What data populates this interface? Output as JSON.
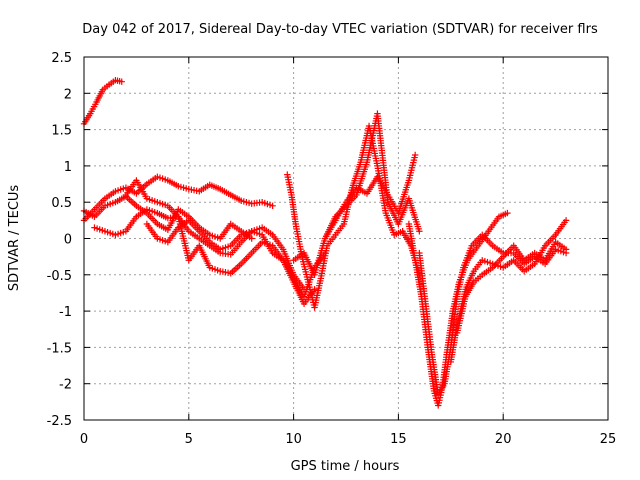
{
  "chart_data": {
    "type": "scatter",
    "title": "Day 042 of 2017, Sidereal Day-to-day VTEC variation (SDTVAR) for receiver flrs",
    "xlabel": "GPS time / hours",
    "ylabel": "SDTVAR / TECUs",
    "xlim": [
      0,
      25
    ],
    "ylim": [
      -2.5,
      2.5
    ],
    "x_ticks": [
      0,
      5,
      10,
      15,
      20,
      25
    ],
    "y_ticks": [
      -2.5,
      -2,
      -1.5,
      -1,
      -0.5,
      0,
      0.5,
      1,
      1.5,
      2,
      2.5
    ],
    "x_tick_labels": [
      "0",
      "5",
      "10",
      "15",
      "20",
      "25"
    ],
    "y_tick_labels": [
      "-2.5",
      "-2",
      "-1.5",
      "-1",
      "-0.5",
      "0",
      "0.5",
      "1",
      "1.5",
      "2",
      "2.5"
    ],
    "grid": true,
    "marker": "+",
    "color": "#ff0000",
    "series": [
      {
        "x": [
          0.0,
          0.3,
          0.6,
          0.9,
          1.2,
          1.5,
          1.8
        ],
        "y": [
          1.58,
          1.72,
          1.88,
          2.05,
          2.12,
          2.18,
          2.16
        ]
      },
      {
        "x": [
          0.0,
          0.5,
          1.0,
          1.5,
          2.0,
          2.5,
          3.0,
          3.5,
          4.0,
          4.5,
          5.0,
          5.5,
          6.0,
          6.5,
          7.0,
          7.5,
          8.0,
          8.5,
          9.0
        ],
        "y": [
          0.25,
          0.4,
          0.55,
          0.65,
          0.7,
          0.62,
          0.75,
          0.85,
          0.8,
          0.72,
          0.68,
          0.65,
          0.74,
          0.68,
          0.6,
          0.52,
          0.48,
          0.5,
          0.45
        ]
      },
      {
        "x": [
          0.0,
          0.5,
          1.0,
          1.5,
          2.0,
          2.5,
          3.0,
          3.5,
          4.0,
          4.5,
          5.0,
          5.5,
          6.0,
          6.5,
          7.0,
          7.5,
          8.0
        ],
        "y": [
          0.38,
          0.3,
          0.45,
          0.5,
          0.58,
          0.45,
          0.35,
          0.2,
          0.12,
          0.4,
          0.3,
          0.15,
          0.05,
          0.0,
          0.2,
          0.1,
          0.0
        ]
      },
      {
        "x": [
          0.5,
          1.0,
          1.5,
          2.0,
          2.5,
          3.0,
          3.5,
          4.0,
          4.5,
          5.0,
          5.5,
          6.0,
          6.5,
          7.0,
          7.5,
          8.0,
          8.5,
          9.0,
          9.5,
          10.0,
          10.5
        ],
        "y": [
          0.15,
          0.1,
          0.05,
          0.1,
          0.3,
          0.4,
          0.35,
          0.28,
          0.3,
          0.1,
          0.0,
          -0.1,
          -0.2,
          -0.22,
          -0.05,
          0.1,
          0.15,
          0.05,
          -0.15,
          -0.5,
          -0.7
        ]
      },
      {
        "x": [
          2.0,
          2.5,
          3.0,
          3.5,
          4.0,
          4.5,
          5.0,
          5.5,
          6.0,
          6.5,
          7.0,
          7.5,
          8.0,
          8.5,
          9.0,
          9.5,
          10.0,
          10.5,
          11.0
        ],
        "y": [
          0.6,
          0.8,
          0.55,
          0.5,
          0.45,
          0.3,
          -0.3,
          -0.1,
          -0.4,
          -0.45,
          -0.48,
          -0.35,
          -0.2,
          -0.05,
          -0.1,
          -0.3,
          -0.6,
          -0.9,
          -0.7
        ]
      },
      {
        "x": [
          3.0,
          3.5,
          4.0,
          4.5,
          5.0,
          5.5,
          6.0,
          6.5,
          7.0,
          7.5,
          8.0,
          8.5,
          9.0,
          9.5,
          10.0,
          10.5,
          11.0,
          11.5
        ],
        "y": [
          0.2,
          0.0,
          -0.05,
          0.15,
          0.25,
          0.1,
          -0.05,
          -0.15,
          -0.1,
          0.05,
          0.1,
          0.05,
          -0.2,
          -0.3,
          -0.55,
          -0.8,
          -0.4,
          -0.2
        ]
      },
      {
        "x": [
          9.7,
          9.9,
          10.1,
          10.4,
          10.7,
          11.0,
          11.3,
          11.6,
          12.0,
          12.4,
          12.8,
          13.2,
          13.6,
          14.0,
          14.4,
          14.8,
          15.2,
          15.6,
          16.0
        ],
        "y": [
          0.88,
          0.6,
          0.2,
          -0.25,
          -0.6,
          -0.95,
          -0.55,
          -0.1,
          0.05,
          0.2,
          0.7,
          1.05,
          1.55,
          1.0,
          0.35,
          0.05,
          0.1,
          -0.1,
          -0.5
        ]
      },
      {
        "x": [
          10.0,
          10.5,
          11.0,
          11.5,
          12.0,
          12.5,
          13.0,
          13.5,
          14.0,
          14.5,
          15.0,
          15.5,
          16.0
        ],
        "y": [
          -0.3,
          -0.2,
          -0.5,
          0.0,
          0.3,
          0.45,
          0.6,
          1.05,
          1.72,
          0.5,
          0.2,
          0.55,
          0.1
        ]
      },
      {
        "x": [
          11.5,
          12.0,
          12.5,
          13.0,
          13.5,
          14.0,
          14.5,
          15.0,
          15.5,
          15.8
        ],
        "y": [
          0.0,
          0.25,
          0.5,
          0.7,
          0.62,
          0.85,
          0.6,
          0.35,
          0.8,
          1.15
        ]
      },
      {
        "x": [
          15.5,
          15.8,
          16.1,
          16.4,
          16.7,
          16.9,
          17.1,
          17.3,
          17.6,
          17.9,
          18.3,
          18.8,
          19.3,
          19.8,
          20.2
        ],
        "y": [
          0.2,
          -0.3,
          -0.8,
          -1.5,
          -2.1,
          -2.3,
          -2.05,
          -1.6,
          -1.0,
          -0.6,
          -0.3,
          -0.1,
          0.1,
          0.3,
          0.35
        ]
      },
      {
        "x": [
          16.0,
          16.3,
          16.6,
          16.9,
          17.2,
          17.5,
          17.8,
          18.1,
          18.5,
          19.0,
          19.5,
          20.0,
          20.5,
          21.0,
          21.5,
          22.0,
          22.5,
          23.0
        ],
        "y": [
          -0.2,
          -0.9,
          -1.6,
          -2.15,
          -2.0,
          -1.5,
          -0.8,
          -0.4,
          -0.1,
          0.05,
          -0.1,
          -0.2,
          -0.2,
          -0.35,
          -0.25,
          -0.35,
          -0.15,
          -0.2
        ]
      },
      {
        "x": [
          17.5,
          17.8,
          18.2,
          18.6,
          19.0,
          19.5,
          20.0,
          20.5,
          21.0,
          21.5,
          22.0,
          22.5,
          23.0
        ],
        "y": [
          -1.7,
          -1.2,
          -0.7,
          -0.45,
          -0.3,
          -0.35,
          -0.4,
          -0.3,
          -0.45,
          -0.35,
          -0.1,
          0.05,
          0.25
        ]
      },
      {
        "x": [
          17.8,
          18.2,
          18.6,
          19.0,
          19.5,
          20.0,
          20.5,
          21.0,
          21.5,
          22.0,
          22.5,
          23.0
        ],
        "y": [
          -1.3,
          -0.8,
          -0.6,
          -0.5,
          -0.4,
          -0.25,
          -0.1,
          -0.3,
          -0.2,
          -0.3,
          -0.05,
          -0.15
        ]
      }
    ]
  }
}
